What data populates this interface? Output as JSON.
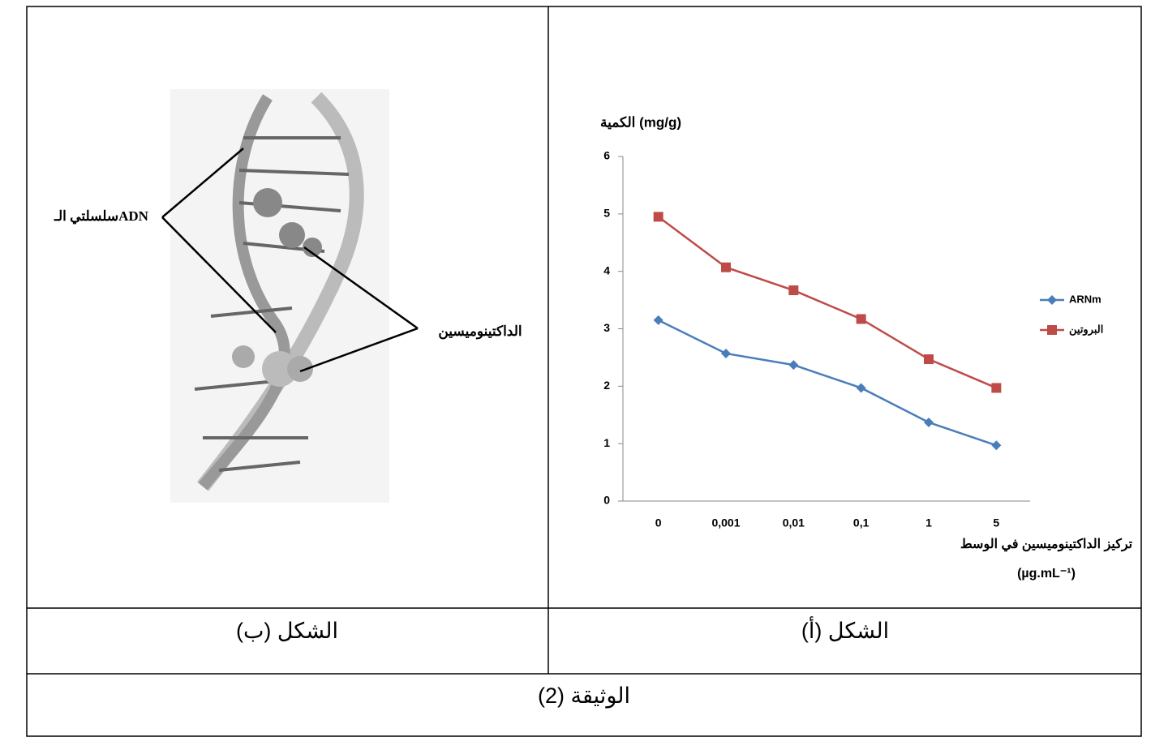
{
  "figure_b": {
    "label_dna": "سلسلتي الـADN",
    "label_drug": "الداكتينوميسين"
  },
  "chart_data": {
    "type": "line",
    "y_label": "الكمية (mg/g)",
    "x_label": "تركيز الداكتينوميسين في الوسط",
    "x_unit": "(µg.mL⁻¹)",
    "categories": [
      "0",
      "0,001",
      "0,01",
      "0,1",
      "1",
      "5"
    ],
    "series": [
      {
        "name": "ARNm",
        "color": "#4a7ebb",
        "marker": "diamond",
        "values": [
          3.15,
          2.57,
          2.37,
          1.97,
          1.37,
          0.97
        ]
      },
      {
        "name": "البروتين",
        "color": "#be4b48",
        "marker": "square",
        "values": [
          4.95,
          4.07,
          3.67,
          3.17,
          2.47,
          1.97
        ]
      }
    ],
    "ylim": [
      0,
      6
    ],
    "yticks": [
      0,
      1,
      2,
      3,
      4,
      5,
      6
    ],
    "grid": false,
    "legend": "right"
  },
  "captions": {
    "figure_b": "الشكل (ب)",
    "figure_a": "الشكل (أ)",
    "document": "الوثيقة (2)"
  }
}
